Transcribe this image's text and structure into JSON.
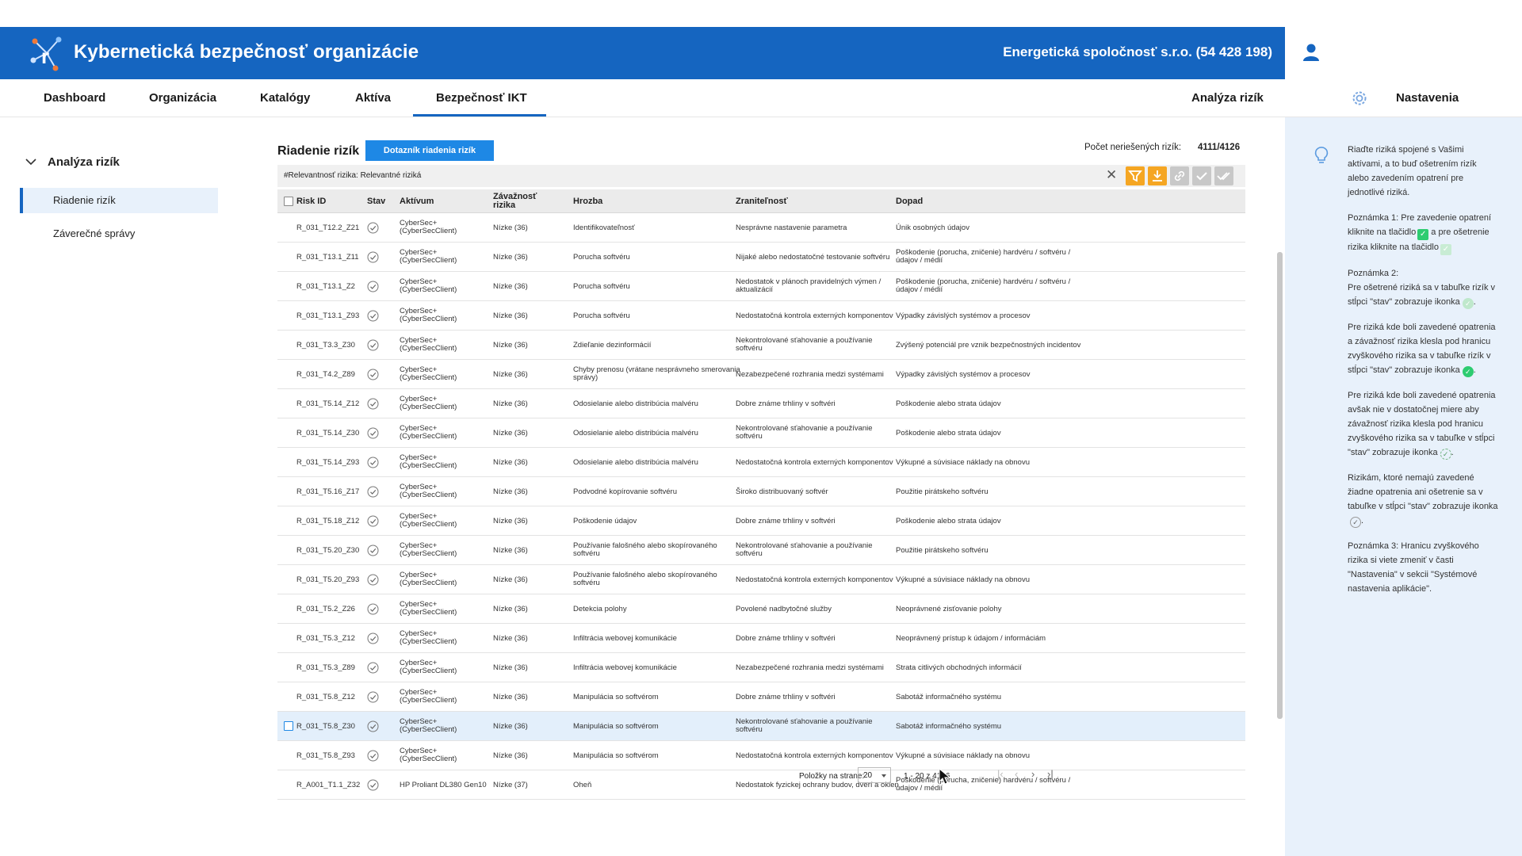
{
  "app": {
    "title": "Kybernetická bezpečnosť organizácie",
    "organization": "Energetická spoločnosť s.r.o. (54 428 198)"
  },
  "colors": {
    "header": "#1565c0",
    "button": "#1e88e5",
    "filter_active": "#f5a623",
    "side_panel": "#e8f1fb",
    "highlight_row": "#e3effb"
  },
  "nav": {
    "dashboard": "Dashboard",
    "organizacia": "Organizácia",
    "katalogy": "Katalógy",
    "aktiva": "Aktíva",
    "bezpecnost": "Bezpečnosť IKT",
    "analyza": "Analýza rizík",
    "settings": "Nastavenia"
  },
  "sidebar": {
    "group": "Analýza rizík",
    "items": [
      "Riadenie rizík",
      "Záverečné správy"
    ]
  },
  "main": {
    "title": "Riadenie rizík",
    "questionnaire_button": "Dotazník riadenia rizík",
    "count_label": "Počet neriešených rizík:",
    "count_value": "4111/4126",
    "filter_text": "#Relevantnosť rizika: Relevantné riziká",
    "toolbar_icons": [
      "filter-icon",
      "download-icon",
      "link-icon",
      "check-icon",
      "double-check-icon"
    ]
  },
  "table": {
    "headers": {
      "risk_id": "Risk ID",
      "stav": "Stav",
      "aktivum": "Aktívum",
      "zavaznost": "Závažnosť\nrizika",
      "hrozba": "Hrozba",
      "zranitelnost": "Zraniteľnosť",
      "dopad": "Dopad"
    },
    "rows": [
      {
        "id": "R_031_T12.2_Z21",
        "aktivum": "CyberSec+\n(CyberSecClient)",
        "zavaznost": "Nízke (36)",
        "hrozba": "Identifikovateľnosť",
        "zranitelnost": "Nesprávne nastavenie parametra",
        "dopad": "Únik osobných údajov"
      },
      {
        "id": "R_031_T13.1_Z11",
        "aktivum": "CyberSec+\n(CyberSecClient)",
        "zavaznost": "Nízke (36)",
        "hrozba": "Porucha softvéru",
        "zranitelnost": "Nijaké alebo nedostatočné testovanie softvéru",
        "dopad": "Poškodenie (porucha, zničenie) hardvéru / softvéru /\núdajov / médií"
      },
      {
        "id": "R_031_T13.1_Z2",
        "aktivum": "CyberSec+\n(CyberSecClient)",
        "zavaznost": "Nízke (36)",
        "hrozba": "Porucha softvéru",
        "zranitelnost": "Nedostatok v plánoch pravidelných výmen /\naktualizácií",
        "dopad": "Poškodenie (porucha, zničenie) hardvéru / softvéru /\núdajov / médií"
      },
      {
        "id": "R_031_T13.1_Z93",
        "aktivum": "CyberSec+\n(CyberSecClient)",
        "zavaznost": "Nízke (36)",
        "hrozba": "Porucha softvéru",
        "zranitelnost": "Nedostatočná kontrola externých komponentov",
        "dopad": "Výpadky závislých systémov a procesov"
      },
      {
        "id": "R_031_T3.3_Z30",
        "aktivum": "CyberSec+\n(CyberSecClient)",
        "zavaznost": "Nízke (36)",
        "hrozba": "Zdieľanie dezinformácií",
        "zranitelnost": "Nekontrolované sťahovanie a používanie\nsoftvéru",
        "dopad": "Zvýšený potenciál pre vznik bezpečnostných incidentov"
      },
      {
        "id": "R_031_T4.2_Z89",
        "aktivum": "CyberSec+\n(CyberSecClient)",
        "zavaznost": "Nízke (36)",
        "hrozba": "Chyby prenosu (vrátane nesprávneho smerovania\nsprávy)",
        "zranitelnost": "Nezabezpečené rozhrania medzi systémami",
        "dopad": "Výpadky závislých systémov a procesov"
      },
      {
        "id": "R_031_T5.14_Z12",
        "aktivum": "CyberSec+\n(CyberSecClient)",
        "zavaznost": "Nízke (36)",
        "hrozba": "Odosielanie alebo distribúcia malvéru",
        "zranitelnost": "Dobre známe trhliny v softvéri",
        "dopad": "Poškodenie alebo strata údajov"
      },
      {
        "id": "R_031_T5.14_Z30",
        "aktivum": "CyberSec+\n(CyberSecClient)",
        "zavaznost": "Nízke (36)",
        "hrozba": "Odosielanie alebo distribúcia malvéru",
        "zranitelnost": "Nekontrolované sťahovanie a používanie\nsoftvéru",
        "dopad": "Poškodenie alebo strata údajov"
      },
      {
        "id": "R_031_T5.14_Z93",
        "aktivum": "CyberSec+\n(CyberSecClient)",
        "zavaznost": "Nízke (36)",
        "hrozba": "Odosielanie alebo distribúcia malvéru",
        "zranitelnost": "Nedostatočná kontrola externých komponentov",
        "dopad": "Výkupné a súvisiace náklady na obnovu"
      },
      {
        "id": "R_031_T5.16_Z17",
        "aktivum": "CyberSec+\n(CyberSecClient)",
        "zavaznost": "Nízke (36)",
        "hrozba": "Podvodné kopírovanie softvéru",
        "zranitelnost": "Široko distribuovaný softvér",
        "dopad": "Použitie pirátskeho softvéru"
      },
      {
        "id": "R_031_T5.18_Z12",
        "aktivum": "CyberSec+\n(CyberSecClient)",
        "zavaznost": "Nízke (36)",
        "hrozba": "Poškodenie údajov",
        "zranitelnost": "Dobre známe trhliny v softvéri",
        "dopad": "Poškodenie alebo strata údajov"
      },
      {
        "id": "R_031_T5.20_Z30",
        "aktivum": "CyberSec+\n(CyberSecClient)",
        "zavaznost": "Nízke (36)",
        "hrozba": "Používanie falošného alebo skopírovaného\nsoftvéru",
        "zranitelnost": "Nekontrolované sťahovanie a používanie\nsoftvéru",
        "dopad": "Použitie pirátskeho softvéru"
      },
      {
        "id": "R_031_T5.20_Z93",
        "aktivum": "CyberSec+\n(CyberSecClient)",
        "zavaznost": "Nízke (36)",
        "hrozba": "Používanie falošného alebo skopírovaného\nsoftvéru",
        "zranitelnost": "Nedostatočná kontrola externých komponentov",
        "dopad": "Výkupné a súvisiace náklady na obnovu"
      },
      {
        "id": "R_031_T5.2_Z26",
        "aktivum": "CyberSec+\n(CyberSecClient)",
        "zavaznost": "Nízke (36)",
        "hrozba": "Detekcia polohy",
        "zranitelnost": "Povolené nadbytočné služby",
        "dopad": "Neoprávnené zisťovanie polohy"
      },
      {
        "id": "R_031_T5.3_Z12",
        "aktivum": "CyberSec+\n(CyberSecClient)",
        "zavaznost": "Nízke (36)",
        "hrozba": "Infiltrácia webovej komunikácie",
        "zranitelnost": "Dobre známe trhliny v softvéri",
        "dopad": "Neoprávnený prístup k údajom / informáciám"
      },
      {
        "id": "R_031_T5.3_Z89",
        "aktivum": "CyberSec+\n(CyberSecClient)",
        "zavaznost": "Nízke (36)",
        "hrozba": "Infiltrácia webovej komunikácie",
        "zranitelnost": "Nezabezpečené rozhrania medzi systémami",
        "dopad": "Strata citlivých obchodných informácií"
      },
      {
        "id": "R_031_T5.8_Z12",
        "aktivum": "CyberSec+\n(CyberSecClient)",
        "zavaznost": "Nízke (36)",
        "hrozba": "Manipulácia so softvérom",
        "zranitelnost": "Dobre známe trhliny v softvéri",
        "dopad": "Sabotáž informačného systému"
      },
      {
        "id": "R_031_T5.8_Z30",
        "aktivum": "CyberSec+\n(CyberSecClient)",
        "zavaznost": "Nízke (36)",
        "hrozba": "Manipulácia so softvérom",
        "zranitelnost": "Nekontrolované sťahovanie a používanie\nsoftvéru",
        "dopad": "Sabotáž informačného systému",
        "highlight": true
      },
      {
        "id": "R_031_T5.8_Z93",
        "aktivum": "CyberSec+\n(CyberSecClient)",
        "zavaznost": "Nízke (36)",
        "hrozba": "Manipulácia so softvérom",
        "zranitelnost": "Nedostatočná kontrola externých komponentov",
        "dopad": "Výkupné a súvisiace náklady na obnovu"
      },
      {
        "id": "R_A001_T1.1_Z32",
        "aktivum": "HP Proliant DL380 Gen10",
        "zavaznost": "Nízke (37)",
        "hrozba": "Oheň",
        "zranitelnost": "Nedostatok fyzickej ochrany budov, dverí a okien",
        "dopad": "Poškodenie (porucha, zničenie) hardvéru / softvéru /\núdajov / médií"
      }
    ]
  },
  "pagination": {
    "label": "Položky na strane:",
    "per_page": "20",
    "range": "1 - 20 z 4126"
  },
  "help": {
    "p1": "Riaďte riziká spojené s Vašimi aktívami, a to buď ošetrením rizík alebo zavedením opatrení pre jednotlivé riziká.",
    "p2a": "Poznámka 1: Pre zavedenie opatrení kliknite na tlačidlo",
    "p2b": "a pre ošetrenie rizika kliknite na tlačidlo",
    "p3": "Poznámka 2:\nPre ošetrené riziká sa v tabuľke rizík v stĺpci \"stav\" zobrazuje ikonka",
    "p4": "Pre riziká kde boli zavedené opatrenia a závažnosť rizika klesla pod hranicu zvyškového rizika sa v tabuľke rizík v stĺpci \"stav\" zobrazuje ikonka",
    "p5": "Pre riziká kde boli zavedené opatrenia avšak nie v dostatočnej miere aby závažnosť rizika klesla pod hranicu zvyškového rizika sa v tabuľke v stĺpci \"stav\" zobrazuje ikonka",
    "p6": "Rizikám, ktoré nemajú zavedené žiadne opatrenia ani ošetrenie sa v tabuľke v stĺpci \"stav\" zobrazuje ikonka",
    "p7": "Poznámka 3: Hranicu zvyškového rizika si viete zmeniť v časti \"Nastavenia\" v sekcii \"Systémové nastavenia aplikácie\"."
  }
}
